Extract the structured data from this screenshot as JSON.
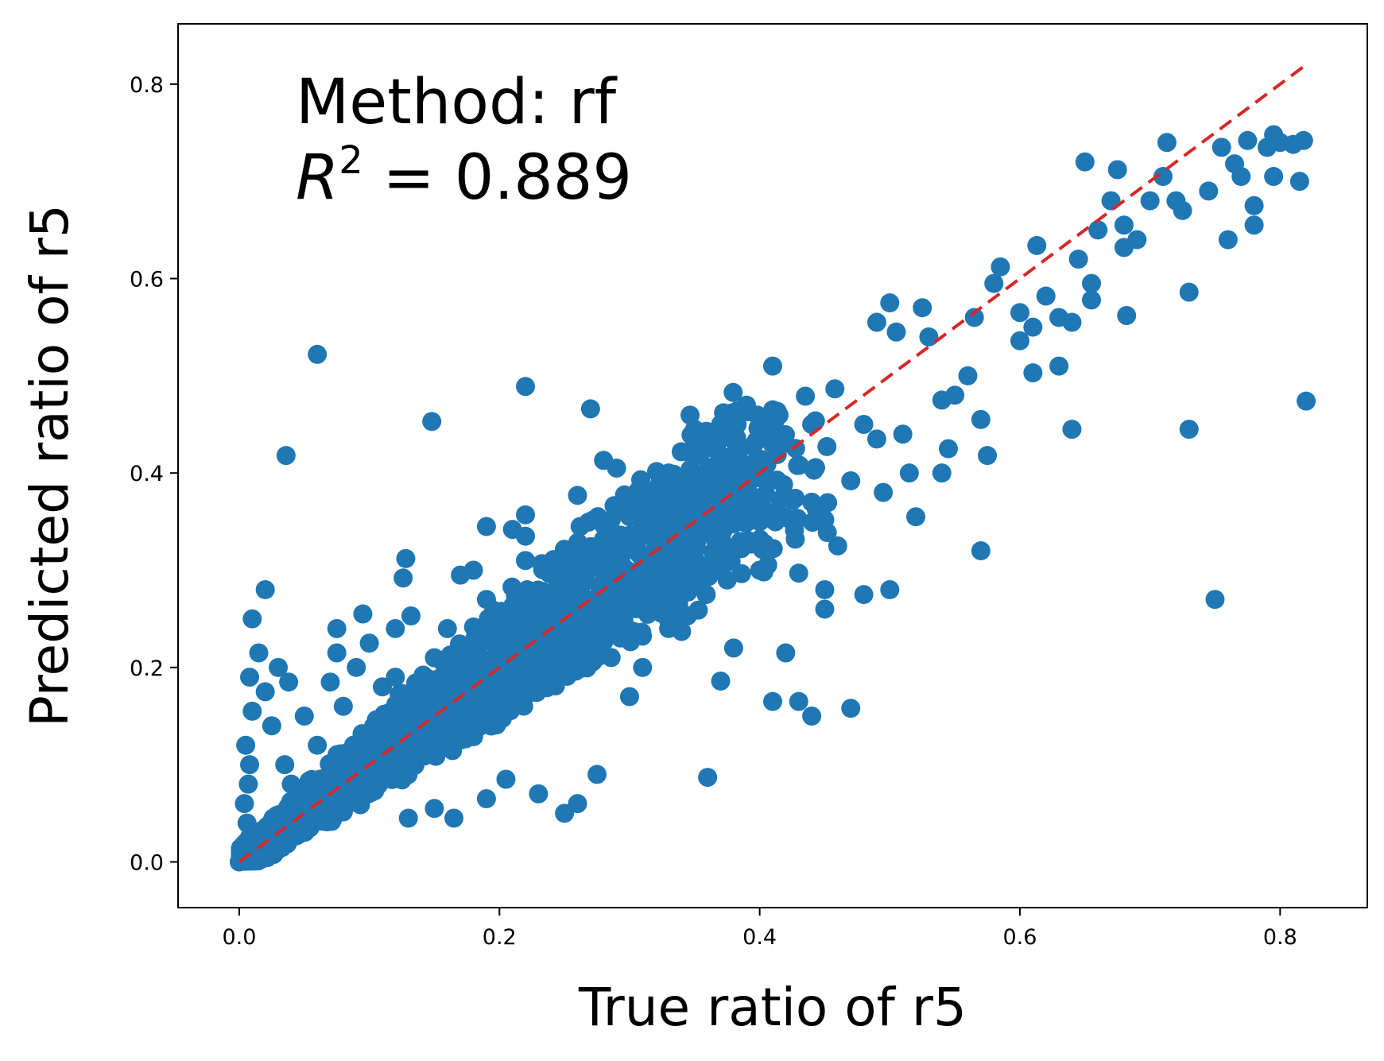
{
  "chart_data": {
    "type": "scatter",
    "xlabel": "True ratio of r5",
    "ylabel": "Predicted ratio of r5",
    "xlim": [
      -0.047,
      0.867
    ],
    "ylim": [
      -0.047,
      0.862
    ],
    "xticks": [
      0.0,
      0.2,
      0.4,
      0.6,
      0.8
    ],
    "yticks": [
      0.0,
      0.2,
      0.4,
      0.6,
      0.8
    ],
    "xtick_labels": [
      "0.0",
      "0.2",
      "0.4",
      "0.6",
      "0.8"
    ],
    "ytick_labels": [
      "0.0",
      "0.2",
      "0.4",
      "0.6",
      "0.8"
    ],
    "grid": false,
    "annotation": {
      "method_text": "Method: rf",
      "r2_symbol": "R",
      "r2_exponent": "2",
      "r2_text": " = 0.889"
    },
    "reference_line": {
      "style": "dashed",
      "color": "#d62728",
      "x": [
        0.0,
        0.82
      ],
      "y": [
        0.0,
        0.82
      ]
    },
    "marker_color": "#1f77b4",
    "points": [
      [
        0.0,
        0.0
      ],
      [
        0.003,
        0.005
      ],
      [
        0.005,
        0.02
      ],
      [
        0.006,
        0.04
      ],
      [
        0.004,
        0.06
      ],
      [
        0.007,
        0.08
      ],
      [
        0.008,
        0.1
      ],
      [
        0.005,
        0.12
      ],
      [
        0.008,
        0.19
      ],
      [
        0.01,
        0.155
      ],
      [
        0.01,
        0.25
      ],
      [
        0.015,
        0.215
      ],
      [
        0.02,
        0.28
      ],
      [
        0.02,
        0.175
      ],
      [
        0.025,
        0.14
      ],
      [
        0.03,
        0.2
      ],
      [
        0.035,
        0.1
      ],
      [
        0.038,
        0.185
      ],
      [
        0.04,
        0.08
      ],
      [
        0.036,
        0.418
      ],
      [
        0.06,
        0.522
      ],
      [
        0.05,
        0.15
      ],
      [
        0.06,
        0.12
      ],
      [
        0.07,
        0.185
      ],
      [
        0.075,
        0.24
      ],
      [
        0.075,
        0.215
      ],
      [
        0.08,
        0.16
      ],
      [
        0.09,
        0.2
      ],
      [
        0.095,
        0.255
      ],
      [
        0.1,
        0.225
      ],
      [
        0.1,
        0.13
      ],
      [
        0.11,
        0.18
      ],
      [
        0.12,
        0.24
      ],
      [
        0.12,
        0.19
      ],
      [
        0.128,
        0.312
      ],
      [
        0.126,
        0.292
      ],
      [
        0.132,
        0.253
      ],
      [
        0.13,
        0.045
      ],
      [
        0.148,
        0.453
      ],
      [
        0.15,
        0.21
      ],
      [
        0.15,
        0.055
      ],
      [
        0.165,
        0.045
      ],
      [
        0.16,
        0.24
      ],
      [
        0.17,
        0.295
      ],
      [
        0.18,
        0.3
      ],
      [
        0.19,
        0.345
      ],
      [
        0.19,
        0.27
      ],
      [
        0.19,
        0.065
      ],
      [
        0.205,
        0.085
      ],
      [
        0.21,
        0.342
      ],
      [
        0.22,
        0.357
      ],
      [
        0.22,
        0.335
      ],
      [
        0.22,
        0.31
      ],
      [
        0.22,
        0.489
      ],
      [
        0.23,
        0.07
      ],
      [
        0.24,
        0.25
      ],
      [
        0.25,
        0.05
      ],
      [
        0.26,
        0.06
      ],
      [
        0.26,
        0.377
      ],
      [
        0.262,
        0.345
      ],
      [
        0.27,
        0.466
      ],
      [
        0.28,
        0.413
      ],
      [
        0.29,
        0.405
      ],
      [
        0.29,
        0.32
      ],
      [
        0.275,
        0.09
      ],
      [
        0.28,
        0.26
      ],
      [
        0.3,
        0.355
      ],
      [
        0.31,
        0.372
      ],
      [
        0.3,
        0.17
      ],
      [
        0.31,
        0.2
      ],
      [
        0.32,
        0.28
      ],
      [
        0.33,
        0.24
      ],
      [
        0.33,
        0.4
      ],
      [
        0.34,
        0.237
      ],
      [
        0.34,
        0.34
      ],
      [
        0.35,
        0.445
      ],
      [
        0.35,
        0.39
      ],
      [
        0.36,
        0.34
      ],
      [
        0.36,
        0.087
      ],
      [
        0.37,
        0.45
      ],
      [
        0.37,
        0.186
      ],
      [
        0.375,
        0.29
      ],
      [
        0.38,
        0.22
      ],
      [
        0.39,
        0.405
      ],
      [
        0.4,
        0.35
      ],
      [
        0.4,
        0.3
      ],
      [
        0.41,
        0.465
      ],
      [
        0.405,
        0.442
      ],
      [
        0.41,
        0.51
      ],
      [
        0.41,
        0.165
      ],
      [
        0.42,
        0.215
      ],
      [
        0.43,
        0.297
      ],
      [
        0.43,
        0.165
      ],
      [
        0.44,
        0.15
      ],
      [
        0.44,
        0.45
      ],
      [
        0.44,
        0.37
      ],
      [
        0.45,
        0.28
      ],
      [
        0.45,
        0.26
      ],
      [
        0.45,
        0.352
      ],
      [
        0.46,
        0.325
      ],
      [
        0.47,
        0.392
      ],
      [
        0.47,
        0.158
      ],
      [
        0.48,
        0.275
      ],
      [
        0.48,
        0.45
      ],
      [
        0.49,
        0.435
      ],
      [
        0.49,
        0.555
      ],
      [
        0.495,
        0.38
      ],
      [
        0.5,
        0.28
      ],
      [
        0.5,
        0.575
      ],
      [
        0.505,
        0.545
      ],
      [
        0.51,
        0.44
      ],
      [
        0.515,
        0.4
      ],
      [
        0.52,
        0.355
      ],
      [
        0.525,
        0.57
      ],
      [
        0.53,
        0.54
      ],
      [
        0.54,
        0.4
      ],
      [
        0.54,
        0.475
      ],
      [
        0.545,
        0.425
      ],
      [
        0.55,
        0.48
      ],
      [
        0.56,
        0.5
      ],
      [
        0.565,
        0.56
      ],
      [
        0.57,
        0.455
      ],
      [
        0.57,
        0.32
      ],
      [
        0.575,
        0.418
      ],
      [
        0.58,
        0.595
      ],
      [
        0.585,
        0.612
      ],
      [
        0.6,
        0.565
      ],
      [
        0.6,
        0.536
      ],
      [
        0.61,
        0.55
      ],
      [
        0.61,
        0.503
      ],
      [
        0.613,
        0.634
      ],
      [
        0.62,
        0.582
      ],
      [
        0.63,
        0.56
      ],
      [
        0.63,
        0.51
      ],
      [
        0.64,
        0.445
      ],
      [
        0.64,
        0.555
      ],
      [
        0.645,
        0.62
      ],
      [
        0.65,
        0.72
      ],
      [
        0.655,
        0.595
      ],
      [
        0.655,
        0.578
      ],
      [
        0.66,
        0.65
      ],
      [
        0.67,
        0.68
      ],
      [
        0.675,
        0.712
      ],
      [
        0.68,
        0.632
      ],
      [
        0.68,
        0.655
      ],
      [
        0.682,
        0.562
      ],
      [
        0.69,
        0.64
      ],
      [
        0.7,
        0.68
      ],
      [
        0.71,
        0.705
      ],
      [
        0.713,
        0.74
      ],
      [
        0.72,
        0.68
      ],
      [
        0.725,
        0.67
      ],
      [
        0.73,
        0.586
      ],
      [
        0.73,
        0.445
      ],
      [
        0.745,
        0.69
      ],
      [
        0.75,
        0.27
      ],
      [
        0.755,
        0.735
      ],
      [
        0.76,
        0.64
      ],
      [
        0.765,
        0.718
      ],
      [
        0.77,
        0.705
      ],
      [
        0.775,
        0.742
      ],
      [
        0.78,
        0.675
      ],
      [
        0.78,
        0.655
      ],
      [
        0.79,
        0.735
      ],
      [
        0.795,
        0.748
      ],
      [
        0.795,
        0.705
      ],
      [
        0.8,
        0.74
      ],
      [
        0.81,
        0.738
      ],
      [
        0.815,
        0.7
      ],
      [
        0.818,
        0.742
      ],
      [
        0.82,
        0.474
      ]
    ]
  }
}
